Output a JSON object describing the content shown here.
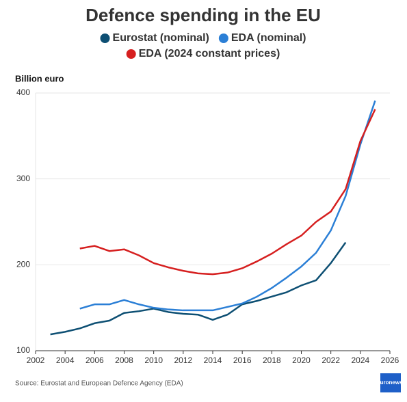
{
  "chart_data": {
    "type": "line",
    "title": "Defence spending in the EU",
    "y_label": "Billion euro",
    "source": "Source: Eurostat and European Defence Agency (EDA)",
    "logo": "euronews.",
    "x": [
      2003,
      2004,
      2005,
      2006,
      2007,
      2008,
      2009,
      2010,
      2011,
      2012,
      2013,
      2014,
      2015,
      2016,
      2017,
      2018,
      2019,
      2020,
      2021,
      2022,
      2023,
      2024,
      2025
    ],
    "series": [
      {
        "name": "Eurostat (nominal)",
        "color": "#0d4f73",
        "values": [
          119,
          122,
          126,
          132,
          135,
          144,
          146,
          149,
          145,
          143,
          142,
          136,
          142,
          154,
          158,
          163,
          168,
          176,
          182,
          202,
          226,
          null,
          null
        ]
      },
      {
        "name": "EDA (nominal)",
        "color": "#2b7fd6",
        "values": [
          null,
          null,
          149,
          154,
          154,
          159,
          154,
          150,
          148,
          147,
          147,
          147,
          151,
          155,
          163,
          173,
          185,
          198,
          214,
          240,
          280,
          340,
          391
        ]
      },
      {
        "name": "EDA (2024 constant prices)",
        "color": "#d61f1f",
        "values": [
          null,
          null,
          219,
          222,
          216,
          218,
          211,
          202,
          197,
          193,
          190,
          189,
          191,
          196,
          204,
          213,
          224,
          234,
          250,
          262,
          288,
          344,
          381
        ]
      }
    ],
    "xlim": [
      2002,
      2026
    ],
    "xticks": [
      2002,
      2004,
      2006,
      2008,
      2010,
      2012,
      2014,
      2016,
      2018,
      2020,
      2022,
      2024,
      2026
    ],
    "ylim": [
      100,
      400
    ],
    "yticks": [
      100,
      200,
      300,
      400
    ],
    "grid": true
  }
}
